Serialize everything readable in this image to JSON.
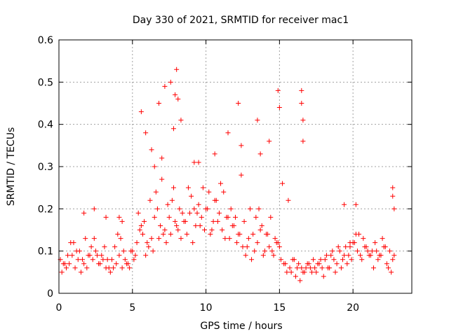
{
  "chart_data": {
    "type": "scatter",
    "title": "Day 330 of 2021, SRMTID for receiver mac1",
    "xlabel": "GPS time / hours",
    "ylabel": "SRMTID / TECUs",
    "xlim": [
      0,
      24
    ],
    "ylim": [
      0,
      0.6
    ],
    "xticks": [
      0,
      5,
      10,
      15,
      20
    ],
    "yticks": [
      0,
      0.1,
      0.2,
      0.3,
      0.4,
      0.5,
      0.6
    ],
    "xtick_labels": [
      "0",
      "5",
      "10",
      "15",
      "20"
    ],
    "ytick_labels": [
      "0",
      "0.1",
      "0.2",
      "0.3",
      "0.4",
      "0.5",
      "0.6"
    ],
    "grid": true,
    "marker": "+",
    "marker_color": "#ff0000",
    "series": [
      {
        "name": "mac1",
        "x": [
          0.1,
          0.3,
          0.5,
          0.7,
          0.9,
          1.1,
          1.3,
          1.5,
          1.7,
          1.9,
          2.1,
          2.3,
          2.5,
          2.7,
          2.9,
          3.1,
          3.3,
          3.5,
          3.7,
          3.9,
          4.1,
          4.3,
          4.5,
          4.7,
          4.9,
          5.1,
          5.3,
          5.5,
          5.7,
          5.9,
          6.1,
          6.3,
          6.5,
          6.7,
          6.9,
          7.1,
          7.3,
          7.5,
          7.7,
          7.9,
          8.1,
          8.3,
          8.5,
          8.7,
          8.9,
          9.1,
          9.3,
          9.5,
          9.7,
          9.9,
          10.1,
          10.3,
          10.5,
          10.7,
          10.9,
          11.1,
          11.3,
          11.5,
          11.7,
          11.9,
          12.1,
          12.3,
          12.5,
          12.7,
          12.9,
          13.1,
          13.3,
          13.5,
          13.7,
          13.9,
          14.1,
          14.3,
          14.5,
          14.7,
          14.9,
          15.1,
          15.3,
          15.5,
          15.7,
          15.9,
          16.1,
          16.3,
          16.5,
          16.7,
          16.9,
          17.1,
          17.3,
          17.5,
          17.7,
          17.9,
          18.1,
          18.3,
          18.5,
          18.7,
          18.9,
          19.1,
          19.3,
          19.5,
          19.7,
          19.9,
          20.1,
          20.3,
          20.5,
          20.7,
          20.9,
          21.1,
          21.3,
          21.5,
          21.7,
          21.9,
          22.1,
          22.3,
          22.5,
          22.7,
          0.2,
          0.6,
          1.0,
          1.4,
          1.8,
          2.2,
          2.6,
          3.0,
          3.4,
          3.8,
          4.2,
          4.6,
          5.0,
          5.4,
          5.8,
          6.2,
          6.6,
          7.0,
          7.4,
          7.8,
          8.2,
          8.6,
          9.0,
          9.4,
          9.8,
          10.2,
          10.6,
          11.0,
          11.4,
          11.8,
          12.2,
          12.6,
          13.0,
          13.4,
          13.8,
          14.2,
          14.6,
          15.0,
          15.4,
          15.8,
          16.2,
          16.6,
          17.0,
          17.4,
          17.8,
          18.2,
          18.6,
          19.0,
          19.4,
          19.8,
          20.2,
          20.6,
          21.0,
          21.4,
          21.8,
          22.2,
          22.6,
          0.4,
          0.8,
          1.2,
          1.6,
          2.0,
          2.4,
          2.8,
          3.2,
          3.6,
          4.0,
          4.4,
          4.8,
          5.2,
          5.6,
          6.0,
          6.4,
          6.8,
          7.2,
          7.6,
          8.0,
          8.4,
          8.8,
          9.2,
          9.6,
          10.0,
          10.4,
          10.8,
          11.2,
          11.6,
          12.0,
          12.4,
          12.8,
          13.2,
          13.6,
          14.0,
          14.4,
          14.8,
          15.2,
          15.6,
          16.0,
          16.4,
          16.8,
          17.2,
          17.6,
          18.0,
          18.4,
          18.8,
          19.2,
          19.6,
          20.0,
          20.4,
          20.8,
          21.2,
          21.6,
          22.0,
          22.4,
          22.8,
          5.6,
          5.9,
          6.3,
          6.8,
          7.2,
          7.6,
          7.9,
          8.0,
          8.1,
          8.3,
          6.5,
          7.0,
          7.8,
          9.5,
          11.5,
          12.2,
          13.5,
          13.7,
          14.3,
          14.9,
          15.0,
          16.5,
          16.5,
          16.6,
          16.6,
          22.7,
          22.7,
          22.8,
          1.7,
          2.4,
          3.2,
          4.3,
          4.1,
          9.2,
          10.6,
          12.4,
          19.4,
          19.8,
          20.2
        ],
        "y": [
          0.08,
          0.07,
          0.06,
          0.07,
          0.09,
          0.06,
          0.08,
          0.05,
          0.07,
          0.06,
          0.09,
          0.08,
          0.1,
          0.07,
          0.09,
          0.11,
          0.08,
          0.05,
          0.06,
          0.07,
          0.09,
          0.06,
          0.08,
          0.07,
          0.1,
          0.08,
          0.12,
          0.15,
          0.14,
          0.09,
          0.11,
          0.13,
          0.18,
          0.2,
          0.16,
          0.14,
          0.12,
          0.18,
          0.22,
          0.17,
          0.15,
          0.13,
          0.17,
          0.14,
          0.19,
          0.12,
          0.16,
          0.21,
          0.18,
          0.15,
          0.2,
          0.14,
          0.17,
          0.22,
          0.19,
          0.15,
          0.13,
          0.18,
          0.2,
          0.16,
          0.12,
          0.14,
          0.11,
          0.09,
          0.13,
          0.08,
          0.1,
          0.12,
          0.15,
          0.09,
          0.14,
          0.11,
          0.1,
          0.13,
          0.12,
          0.08,
          0.07,
          0.05,
          0.06,
          0.08,
          0.04,
          0.07,
          0.06,
          0.05,
          0.07,
          0.06,
          0.08,
          0.05,
          0.07,
          0.06,
          0.08,
          0.06,
          0.09,
          0.08,
          0.07,
          0.1,
          0.08,
          0.11,
          0.09,
          0.08,
          0.12,
          0.1,
          0.09,
          0.13,
          0.11,
          0.09,
          0.1,
          0.12,
          0.08,
          0.09,
          0.11,
          0.07,
          0.1,
          0.08,
          0.05,
          0.09,
          0.12,
          0.1,
          0.13,
          0.11,
          0.09,
          0.08,
          0.06,
          0.11,
          0.13,
          0.07,
          0.1,
          0.19,
          0.17,
          0.22,
          0.24,
          0.27,
          0.21,
          0.25,
          0.2,
          0.17,
          0.23,
          0.19,
          0.25,
          0.24,
          0.22,
          0.26,
          0.18,
          0.16,
          0.14,
          0.17,
          0.2,
          0.18,
          0.16,
          0.14,
          0.09,
          0.11,
          0.07,
          0.05,
          0.06,
          0.05,
          0.07,
          0.06,
          0.08,
          0.09,
          0.1,
          0.11,
          0.09,
          0.12,
          0.14,
          0.08,
          0.1,
          0.06,
          0.09,
          0.11,
          0.05,
          0.07,
          0.12,
          0.1,
          0.08,
          0.09,
          0.13,
          0.07,
          0.06,
          0.08,
          0.14,
          0.1,
          0.06,
          0.09,
          0.16,
          0.12,
          0.1,
          0.13,
          0.15,
          0.14,
          0.16,
          0.19,
          0.25,
          0.2,
          0.16,
          0.2,
          0.15,
          0.17,
          0.24,
          0.13,
          0.18,
          0.28,
          0.11,
          0.14,
          0.2,
          0.1,
          0.18,
          0.12,
          0.26,
          0.22,
          0.08,
          0.03,
          0.06,
          0.05,
          0.07,
          0.04,
          0.06,
          0.05,
          0.06,
          0.07,
          0.12,
          0.14,
          0.11,
          0.09,
          0.1,
          0.13,
          0.06,
          0.09,
          0.43,
          0.38,
          0.34,
          0.45,
          0.49,
          0.5,
          0.47,
          0.53,
          0.46,
          0.41,
          0.3,
          0.32,
          0.39,
          0.31,
          0.38,
          0.45,
          0.41,
          0.33,
          0.36,
          0.48,
          0.44,
          0.48,
          0.45,
          0.41,
          0.36,
          0.25,
          0.23,
          0.2,
          0.19,
          0.2,
          0.18,
          0.17,
          0.18,
          0.31,
          0.33,
          0.35,
          0.21,
          0.11,
          0.21
        ]
      }
    ]
  }
}
